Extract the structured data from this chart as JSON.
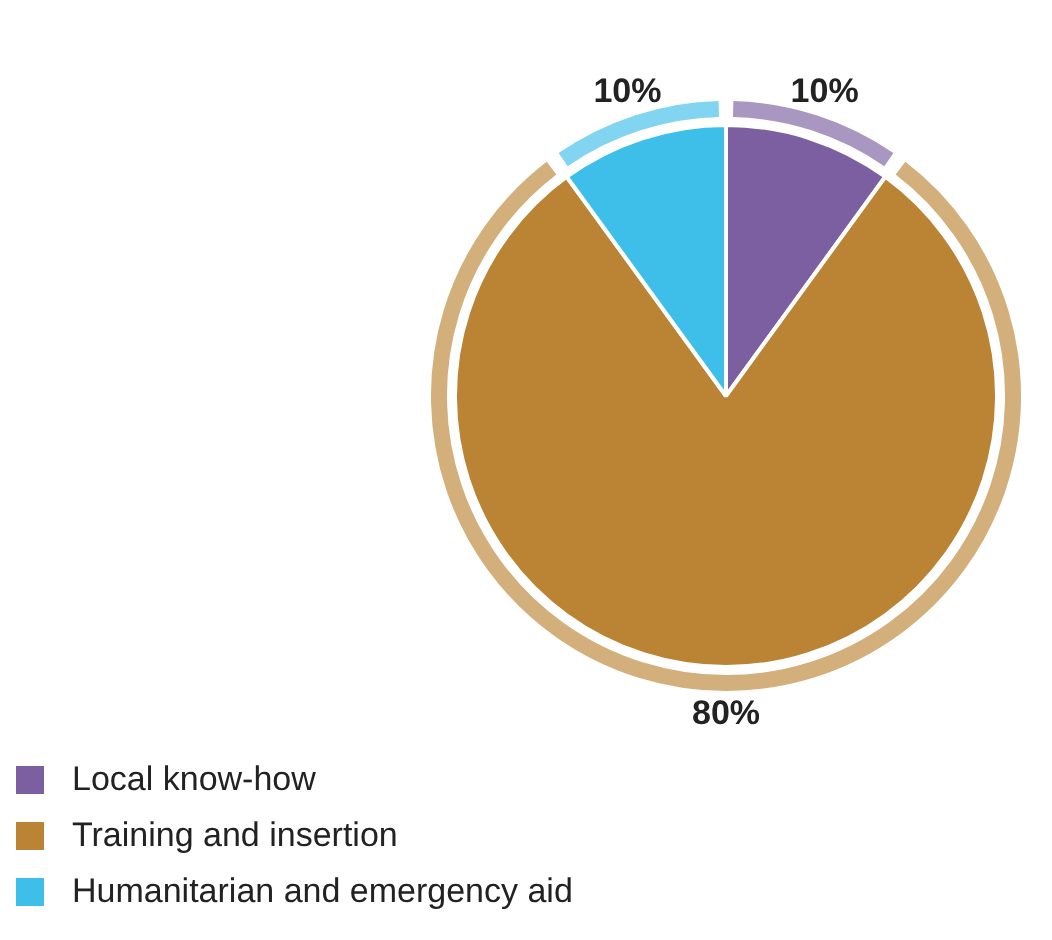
{
  "chart_data": {
    "type": "pie",
    "categories": [
      "Local know-how",
      "Training and insertion",
      "Humanitarian and emergency aid"
    ],
    "values": [
      10,
      80,
      10
    ],
    "colors": [
      "#7b5fa0",
      "#bb8434",
      "#3dbfea"
    ],
    "value_labels": [
      "10%",
      "80%",
      "10%"
    ],
    "legend": "bottom left"
  }
}
